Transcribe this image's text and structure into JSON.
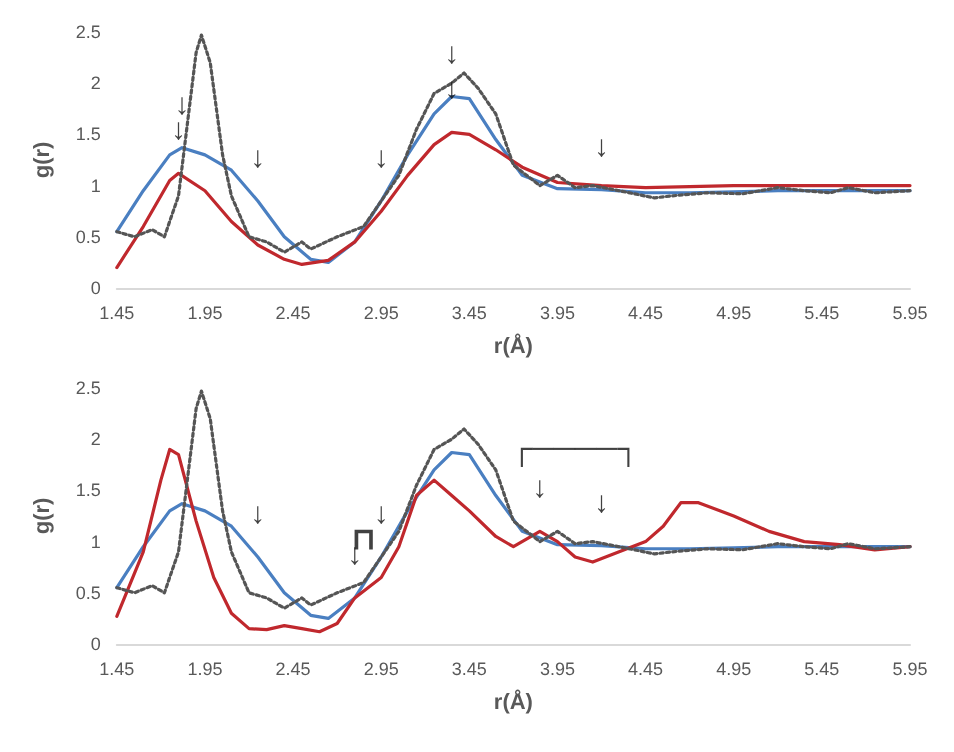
{
  "chart_data": [
    {
      "type": "line",
      "xlabel": "r(Å)",
      "ylabel": "g(r)",
      "xlim": [
        1.45,
        5.95
      ],
      "xticks": [
        1.45,
        1.95,
        2.45,
        2.95,
        3.45,
        3.95,
        4.45,
        4.95,
        5.45,
        5.95
      ],
      "ylim": [
        0,
        2.5
      ],
      "yticks": [
        0,
        0.5,
        1,
        1.5,
        2,
        2.5
      ],
      "grid": false,
      "marker": "none",
      "series": [
        {
          "color": "#4a7fc1",
          "line_style": "solid",
          "x": [
            1.45,
            1.6,
            1.75,
            1.82,
            1.95,
            2.1,
            2.25,
            2.4,
            2.55,
            2.65,
            2.8,
            2.95,
            3.1,
            3.25,
            3.35,
            3.45,
            3.6,
            3.75,
            3.95,
            4.2,
            4.45,
            4.7,
            4.95,
            5.2,
            5.45,
            5.7,
            5.95
          ],
          "values": [
            0.55,
            0.95,
            1.3,
            1.37,
            1.3,
            1.15,
            0.85,
            0.5,
            0.28,
            0.25,
            0.45,
            0.85,
            1.3,
            1.7,
            1.87,
            1.85,
            1.45,
            1.1,
            0.97,
            0.96,
            0.93,
            0.93,
            0.94,
            0.95,
            0.95,
            0.95,
            0.95
          ]
        },
        {
          "color": "#c0282d",
          "line_style": "solid",
          "x": [
            1.45,
            1.6,
            1.75,
            1.8,
            1.95,
            2.1,
            2.25,
            2.4,
            2.5,
            2.65,
            2.8,
            2.95,
            3.1,
            3.25,
            3.35,
            3.45,
            3.6,
            3.75,
            3.95,
            4.2,
            4.45,
            4.95,
            5.45,
            5.95
          ],
          "values": [
            0.2,
            0.6,
            1.05,
            1.12,
            0.95,
            0.65,
            0.42,
            0.28,
            0.23,
            0.27,
            0.45,
            0.75,
            1.1,
            1.4,
            1.52,
            1.5,
            1.35,
            1.18,
            1.03,
            1.0,
            0.98,
            1.0,
            1.0,
            1.0
          ]
        },
        {
          "color": "#555555",
          "line_style": "dotted",
          "x": [
            1.45,
            1.55,
            1.65,
            1.72,
            1.8,
            1.85,
            1.9,
            1.93,
            1.98,
            2.05,
            2.1,
            2.2,
            2.3,
            2.4,
            2.5,
            2.55,
            2.7,
            2.85,
            2.95,
            3.05,
            3.15,
            3.25,
            3.35,
            3.42,
            3.5,
            3.6,
            3.7,
            3.85,
            3.95,
            4.05,
            4.15,
            4.3,
            4.5,
            4.6,
            4.8,
            5.0,
            5.2,
            5.35,
            5.5,
            5.6,
            5.75,
            5.95
          ],
          "values": [
            0.55,
            0.5,
            0.57,
            0.5,
            0.9,
            1.6,
            2.3,
            2.47,
            2.2,
            1.3,
            0.9,
            0.5,
            0.45,
            0.35,
            0.45,
            0.38,
            0.5,
            0.6,
            0.85,
            1.1,
            1.55,
            1.9,
            2.0,
            2.1,
            1.95,
            1.7,
            1.2,
            1.0,
            1.1,
            0.98,
            1.0,
            0.95,
            0.88,
            0.9,
            0.93,
            0.92,
            0.98,
            0.95,
            0.93,
            0.98,
            0.93,
            0.95
          ]
        }
      ],
      "annotations": [
        {
          "text": "↓",
          "x": 1.82,
          "y": 1.37
        },
        {
          "text": "↓",
          "x": 1.8,
          "y": 1.12
        },
        {
          "text": "↓",
          "x": 2.25,
          "y": 0.85
        },
        {
          "text": "↓",
          "x": 2.95,
          "y": 0.85
        },
        {
          "text": "↓",
          "x": 3.35,
          "y": 1.87
        },
        {
          "text": "↓",
          "x": 3.35,
          "y": 1.52
        },
        {
          "text": "↓",
          "x": 4.2,
          "y": 0.96
        }
      ]
    },
    {
      "type": "line",
      "xlabel": "r(Å)",
      "ylabel": "g(r)",
      "xlim": [
        1.45,
        5.95
      ],
      "xticks": [
        1.45,
        1.95,
        2.45,
        2.95,
        3.45,
        3.95,
        4.45,
        4.95,
        5.45,
        5.95
      ],
      "ylim": [
        0,
        2.5
      ],
      "yticks": [
        0,
        0.5,
        1,
        1.5,
        2,
        2.5
      ],
      "grid": false,
      "marker": "none",
      "series": [
        {
          "color": "#4a7fc1",
          "line_style": "solid",
          "x": [
            1.45,
            1.6,
            1.75,
            1.82,
            1.95,
            2.1,
            2.25,
            2.4,
            2.55,
            2.65,
            2.8,
            2.95,
            3.1,
            3.25,
            3.35,
            3.45,
            3.6,
            3.75,
            3.95,
            4.2,
            4.45,
            4.7,
            4.95,
            5.2,
            5.45,
            5.7,
            5.95
          ],
          "values": [
            0.55,
            0.95,
            1.3,
            1.37,
            1.3,
            1.15,
            0.85,
            0.5,
            0.28,
            0.25,
            0.45,
            0.85,
            1.3,
            1.7,
            1.87,
            1.85,
            1.45,
            1.1,
            0.97,
            0.96,
            0.93,
            0.93,
            0.94,
            0.95,
            0.95,
            0.95,
            0.95
          ]
        },
        {
          "color": "#c0282d",
          "line_style": "solid",
          "x": [
            1.45,
            1.6,
            1.7,
            1.75,
            1.8,
            1.9,
            2.0,
            2.1,
            2.2,
            2.3,
            2.4,
            2.5,
            2.6,
            2.7,
            2.8,
            2.95,
            3.05,
            3.15,
            3.25,
            3.35,
            3.45,
            3.6,
            3.7,
            3.85,
            3.95,
            4.05,
            4.15,
            4.3,
            4.45,
            4.55,
            4.65,
            4.75,
            4.95,
            5.15,
            5.35,
            5.55,
            5.75,
            5.95
          ],
          "values": [
            0.27,
            0.9,
            1.6,
            1.9,
            1.85,
            1.2,
            0.65,
            0.3,
            0.15,
            0.14,
            0.18,
            0.15,
            0.12,
            0.2,
            0.45,
            0.65,
            0.95,
            1.45,
            1.6,
            1.45,
            1.3,
            1.05,
            0.95,
            1.1,
            1.0,
            0.85,
            0.8,
            0.9,
            1.0,
            1.15,
            1.38,
            1.38,
            1.25,
            1.1,
            1.0,
            0.97,
            0.92,
            0.95
          ]
        },
        {
          "color": "#555555",
          "line_style": "dotted",
          "x": [
            1.45,
            1.55,
            1.65,
            1.72,
            1.8,
            1.85,
            1.9,
            1.93,
            1.98,
            2.05,
            2.1,
            2.2,
            2.3,
            2.4,
            2.5,
            2.55,
            2.7,
            2.85,
            2.95,
            3.05,
            3.15,
            3.25,
            3.35,
            3.42,
            3.5,
            3.6,
            3.7,
            3.85,
            3.95,
            4.05,
            4.15,
            4.3,
            4.5,
            4.6,
            4.8,
            5.0,
            5.2,
            5.35,
            5.5,
            5.6,
            5.75,
            5.95
          ],
          "values": [
            0.55,
            0.5,
            0.57,
            0.5,
            0.9,
            1.6,
            2.3,
            2.47,
            2.2,
            1.3,
            0.9,
            0.5,
            0.45,
            0.35,
            0.45,
            0.38,
            0.5,
            0.6,
            0.85,
            1.1,
            1.55,
            1.9,
            2.0,
            2.1,
            1.95,
            1.7,
            1.2,
            1.0,
            1.1,
            0.98,
            1.0,
            0.95,
            0.88,
            0.9,
            0.93,
            0.92,
            0.98,
            0.95,
            0.93,
            0.98,
            0.93,
            0.95
          ]
        }
      ],
      "annotations": [
        {
          "text": "↓",
          "x": 2.25,
          "y": 0.85
        },
        {
          "text": "↓",
          "x": 2.95,
          "y": 0.85
        },
        {
          "text": "↓",
          "x": 2.8,
          "y": 0.45
        },
        {
          "text": "↓",
          "x": 3.85,
          "y": 1.1
        },
        {
          "text": "↓",
          "x": 4.2,
          "y": 0.96
        },
        {
          "text": "⊓",
          "x": 2.85,
          "y": 0.6
        },
        {
          "text": "┌────┐",
          "x": 4.05,
          "y": 0.98
        }
      ]
    }
  ]
}
